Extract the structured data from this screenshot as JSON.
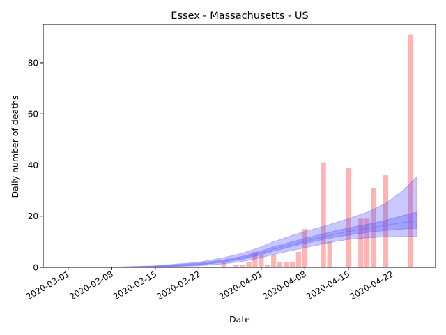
{
  "chart_data": {
    "type": "bar",
    "title": "Essex - Massachusetts - US",
    "xlabel": "Date",
    "ylabel": "Daily number of deaths",
    "x_type": "date",
    "x_range": [
      "2020-02-26",
      "2020-04-29"
    ],
    "ylim": [
      0,
      95
    ],
    "x_ticks": [
      "2020-03-01",
      "2020-03-08",
      "2020-03-15",
      "2020-03-22",
      "2020-04-01",
      "2020-04-08",
      "2020-04-15",
      "2020-04-22"
    ],
    "y_ticks": [
      0,
      20,
      40,
      60,
      80
    ],
    "grid": false,
    "legend": "none",
    "colors": {
      "bars": "#ff9999",
      "bands": "#4a4aff",
      "median_line": "#5555ff",
      "axes": "#000000"
    },
    "bars": [
      {
        "x": "2020-03-26",
        "y": 2
      },
      {
        "x": "2020-03-28",
        "y": 1
      },
      {
        "x": "2020-03-29",
        "y": 1
      },
      {
        "x": "2020-03-30",
        "y": 2
      },
      {
        "x": "2020-03-31",
        "y": 6
      },
      {
        "x": "2020-04-01",
        "y": 5
      },
      {
        "x": "2020-04-02",
        "y": 1
      },
      {
        "x": "2020-04-03",
        "y": 5
      },
      {
        "x": "2020-04-04",
        "y": 2
      },
      {
        "x": "2020-04-05",
        "y": 2
      },
      {
        "x": "2020-04-06",
        "y": 2
      },
      {
        "x": "2020-04-07",
        "y": 6
      },
      {
        "x": "2020-04-08",
        "y": 15
      },
      {
        "x": "2020-04-11",
        "y": 41
      },
      {
        "x": "2020-04-12",
        "y": 10
      },
      {
        "x": "2020-04-15",
        "y": 39
      },
      {
        "x": "2020-04-17",
        "y": 19
      },
      {
        "x": "2020-04-18",
        "y": 19
      },
      {
        "x": "2020-04-19",
        "y": 31
      },
      {
        "x": "2020-04-21",
        "y": 36
      },
      {
        "x": "2020-04-25",
        "y": 91
      }
    ],
    "bands": [
      {
        "name": "outer",
        "x": [
          "2020-02-28",
          "2020-03-08",
          "2020-03-15",
          "2020-03-22",
          "2020-03-26",
          "2020-03-29",
          "2020-04-01",
          "2020-04-03",
          "2020-04-06",
          "2020-04-08",
          "2020-04-11",
          "2020-04-13",
          "2020-04-15",
          "2020-04-18",
          "2020-04-21",
          "2020-04-24",
          "2020-04-26"
        ],
        "lower": [
          0,
          0,
          0,
          0.6,
          1.4,
          2.3,
          3.8,
          5.0,
          6.6,
          7.6,
          9.2,
          10.1,
          10.9,
          11.5,
          11.9,
          12.0,
          12.0
        ],
        "upper": [
          0,
          0.1,
          0.6,
          2.0,
          3.8,
          5.5,
          8.0,
          10.0,
          12.5,
          14.0,
          16.0,
          17.5,
          19.0,
          21.5,
          25.0,
          30.5,
          35.5
        ]
      },
      {
        "name": "inner",
        "x": [
          "2020-02-28",
          "2020-03-08",
          "2020-03-15",
          "2020-03-22",
          "2020-03-26",
          "2020-03-29",
          "2020-04-01",
          "2020-04-03",
          "2020-04-06",
          "2020-04-08",
          "2020-04-11",
          "2020-04-13",
          "2020-04-15",
          "2020-04-18",
          "2020-04-21",
          "2020-04-24",
          "2020-04-26"
        ],
        "lower": [
          0,
          0,
          0.1,
          0.9,
          2.0,
          3.2,
          4.9,
          6.3,
          8.2,
          9.3,
          10.9,
          11.8,
          12.6,
          13.6,
          14.4,
          15.0,
          15.2
        ],
        "upper": [
          0,
          0.05,
          0.45,
          1.6,
          2.9,
          4.3,
          6.4,
          8.0,
          10.0,
          11.3,
          13.1,
          14.3,
          15.4,
          16.8,
          18.4,
          20.4,
          21.6
        ]
      }
    ],
    "median": {
      "x": [
        "2020-02-28",
        "2020-03-08",
        "2020-03-15",
        "2020-03-22",
        "2020-03-26",
        "2020-03-29",
        "2020-04-01",
        "2020-04-03",
        "2020-04-06",
        "2020-04-08",
        "2020-04-11",
        "2020-04-13",
        "2020-04-15",
        "2020-04-18",
        "2020-04-21",
        "2020-04-24",
        "2020-04-26"
      ],
      "y": [
        0,
        0.03,
        0.3,
        1.2,
        2.4,
        3.7,
        5.6,
        7.1,
        9.0,
        10.2,
        11.9,
        13.0,
        14.0,
        15.2,
        16.4,
        17.6,
        18.2
      ]
    }
  }
}
